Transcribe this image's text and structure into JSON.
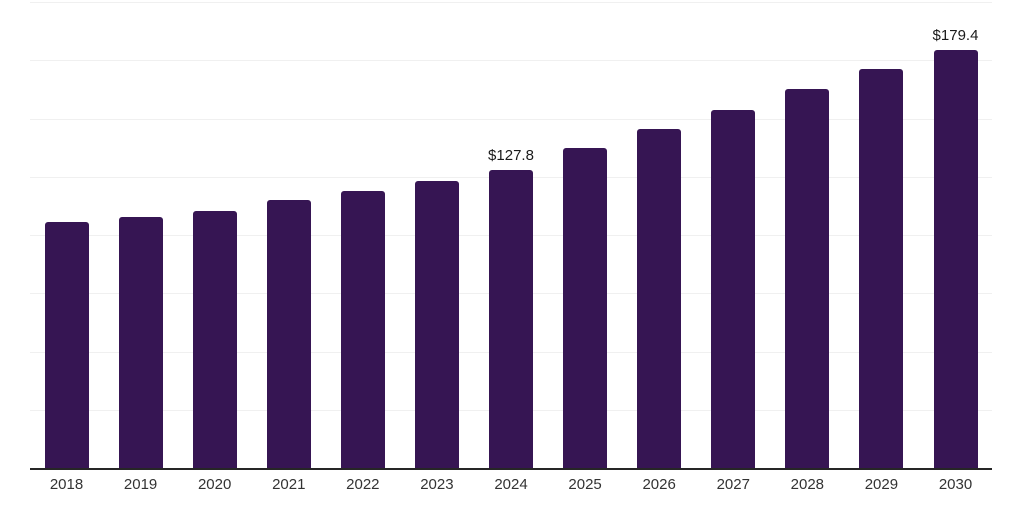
{
  "chart_data": {
    "type": "bar",
    "title": "",
    "xlabel": "",
    "ylabel": "",
    "categories": [
      "2018",
      "2019",
      "2020",
      "2021",
      "2022",
      "2023",
      "2024",
      "2025",
      "2026",
      "2027",
      "2028",
      "2029",
      "2030"
    ],
    "values": [
      105.7,
      107.9,
      110.4,
      114.9,
      119.0,
      123.3,
      127.8,
      137.2,
      145.5,
      153.6,
      162.7,
      171.3,
      179.4
    ],
    "data_labels": {
      "2024": "$127.8",
      "2030": "$179.4"
    },
    "ylim": [
      0,
      200
    ],
    "grid_step": 25,
    "grid": "horizontal",
    "legend": false,
    "y_tick_labels_visible": false,
    "colors": {
      "bar": "#361553",
      "grid": "#f0f0f0",
      "axis": "#262626",
      "value_label": "#1a1a1a",
      "tick_label": "#333333",
      "background": "#ffffff"
    }
  }
}
